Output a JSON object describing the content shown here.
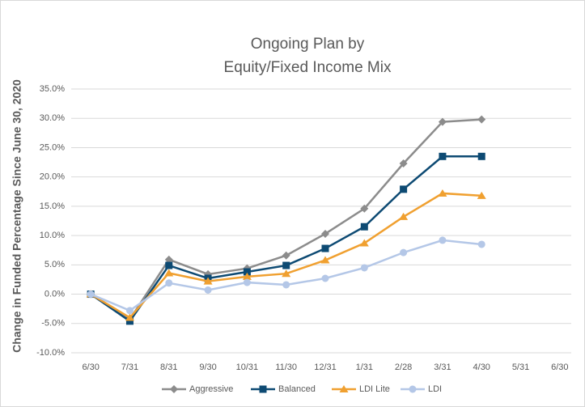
{
  "chart_data": {
    "type": "line",
    "title": [
      "Ongoing Plan by",
      "Equity/Fixed Income Mix"
    ],
    "y_label": "Change in Funded Percentage Since June 30, 2020",
    "categories": [
      "6/30",
      "7/31",
      "8/31",
      "9/30",
      "10/31",
      "11/30",
      "12/31",
      "1/31",
      "2/28",
      "3/31",
      "4/30",
      "5/31",
      "6/30"
    ],
    "series": [
      {
        "name": "Aggressive",
        "color": "#8c8c8c",
        "marker": "diamond",
        "values": [
          0,
          -4.3,
          5.9,
          3.4,
          4.4,
          6.6,
          10.3,
          14.6,
          22.3,
          29.4,
          29.8,
          null,
          null
        ]
      },
      {
        "name": "Balanced",
        "color": "#0d4a73",
        "marker": "square",
        "values": [
          0,
          -4.6,
          4.9,
          2.7,
          3.8,
          4.9,
          7.8,
          11.5,
          17.9,
          23.5,
          23.5,
          null,
          null
        ]
      },
      {
        "name": "LDI Lite",
        "color": "#f0a030",
        "marker": "triangle",
        "values": [
          0,
          -4.0,
          3.6,
          2.2,
          3.0,
          3.5,
          5.8,
          8.7,
          13.2,
          17.2,
          16.8,
          null,
          null
        ]
      },
      {
        "name": "LDI",
        "color": "#b4c7e7",
        "marker": "circle",
        "values": [
          0,
          -2.8,
          1.9,
          0.7,
          2.0,
          1.6,
          2.7,
          4.5,
          7.1,
          9.2,
          8.5,
          null,
          null
        ]
      }
    ],
    "ylim": [
      -10,
      35
    ],
    "yticks": [
      {
        "value": -10,
        "label": "-10.0%"
      },
      {
        "value": -5,
        "label": "-5.0%"
      },
      {
        "value": 0,
        "label": "0.0%"
      },
      {
        "value": 5,
        "label": "5.0%"
      },
      {
        "value": 10,
        "label": "10.0%"
      },
      {
        "value": 15,
        "label": "15.0%"
      },
      {
        "value": 20,
        "label": "20.0%"
      },
      {
        "value": 25,
        "label": "25.0%"
      },
      {
        "value": 30,
        "label": "30.0%"
      },
      {
        "value": 35,
        "label": "35.0%"
      }
    ],
    "grid": true,
    "legend": "bottom"
  }
}
